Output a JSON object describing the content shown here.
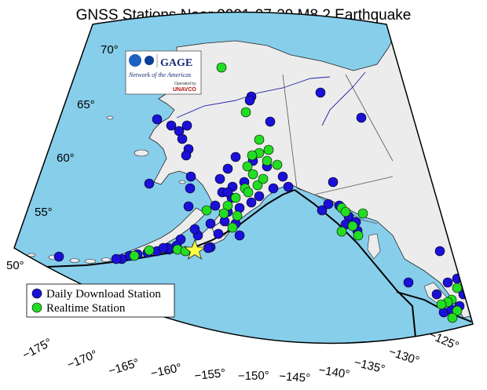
{
  "title": "GNSS Stations Near 2021-07-29 M8.2 Earthquake",
  "logo": {
    "text": "GAGE",
    "subtitle": "Network of the Americas",
    "operated_by": "Operated by",
    "operator": "UNAVCO"
  },
  "legend": {
    "items": [
      {
        "label": "Daily Download Station",
        "color": "#1a10d8"
      },
      {
        "label": "Realtime Station",
        "color": "#22dd22"
      }
    ]
  },
  "latitude_labels": [
    "70°",
    "65°",
    "60°",
    "55°",
    "50°"
  ],
  "longitude_labels": [
    "−175°",
    "−170°",
    "−165°",
    "−160°",
    "−155°",
    "−150°",
    "−145°",
    "−140°",
    "−135°",
    "−130°",
    "−125°"
  ],
  "colors": {
    "ocean": "#87ceeb",
    "land": "#ececec",
    "daily_station": "#1a10d8",
    "realtime_station": "#22dd22",
    "epicenter": "#ffff44",
    "plate_boundary": "#000000",
    "river": "#2020aa"
  },
  "icons": [
    "nsf-logo",
    "nasa-logo",
    "star-epicenter-icon"
  ]
}
